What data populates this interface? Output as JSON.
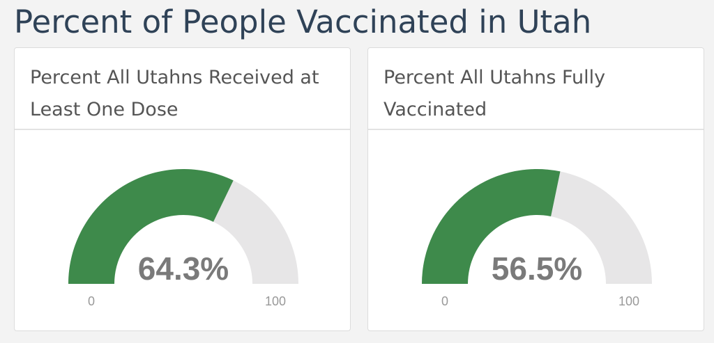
{
  "header": {
    "title": "Percent of People Vaccinated in Utah"
  },
  "chart_data": [
    {
      "type": "gauge",
      "title": "Percent All Utahns Received at Least One Dose",
      "values": [
        64.3
      ],
      "value_labels": [
        "64.3%"
      ],
      "ylim": [
        0,
        100
      ],
      "color": "#3e8a4b",
      "track_color": "#e7e6e7"
    },
    {
      "type": "gauge",
      "title": "Percent All Utahns Fully Vaccinated",
      "values": [
        56.5
      ],
      "value_labels": [
        "56.5%"
      ],
      "ylim": [
        0,
        100
      ],
      "color": "#3e8a4b",
      "track_color": "#e7e6e7"
    }
  ]
}
